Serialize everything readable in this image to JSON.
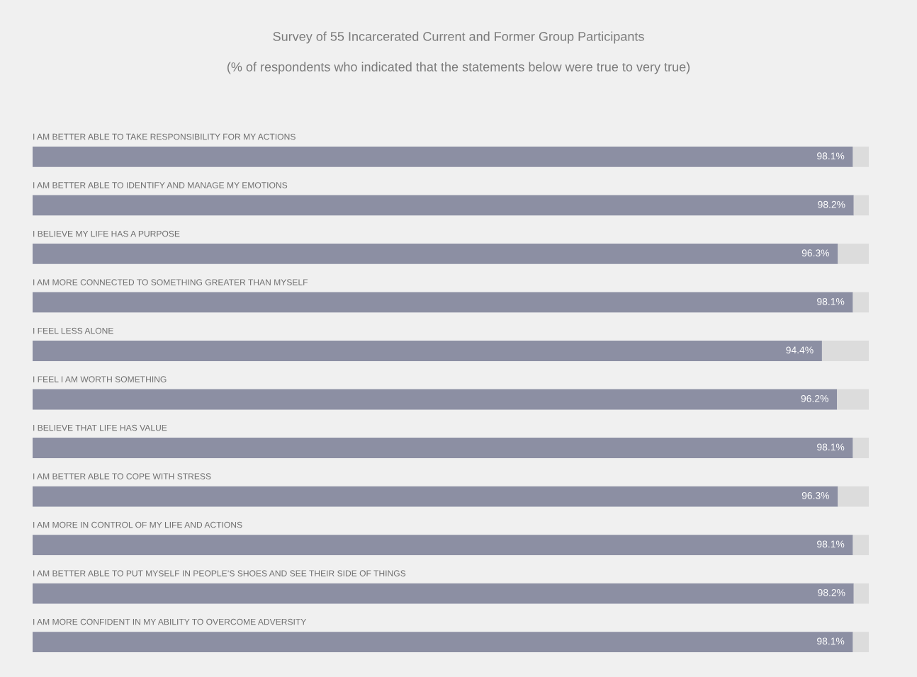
{
  "chart_data": {
    "type": "bar",
    "orientation": "horizontal",
    "stacked": true,
    "title": "Survey of 55 Incarcerated Current and Former Group Participants",
    "subtitle": "(% of respondents who indicated that the statements below were true to very true)",
    "categories": [
      "I AM BETTER ABLE TO TAKE RESPONSIBILITY FOR MY ACTIONS",
      "I AM BETTER ABLE TO IDENTIFY AND MANAGE MY EMOTIONS",
      "I BELIEVE MY LIFE HAS A PURPOSE",
      "I AM MORE CONNECTED TO SOMETHING GREATER THAN MYSELF",
      "I FEEL LESS ALONE",
      "I FEEL I AM WORTH SOMETHING",
      "I BELIEVE THAT LIFE HAS VALUE",
      "I AM BETTER ABLE TO COPE WITH STRESS",
      "I AM MORE IN CONTROL OF MY LIFE AND ACTIONS",
      "I AM BETTER ABLE TO PUT MYSELF IN PEOPLE’S SHOES AND SEE THEIR SIDE OF THINGS",
      "I AM MORE CONFIDENT IN MY ABILITY TO OVERCOME ADVERSITY"
    ],
    "series": [
      {
        "color": "#8c8fa3",
        "values": [
          98.1,
          98.2,
          96.3,
          98.1,
          94.4,
          96.2,
          98.1,
          96.3,
          98.1,
          98.2,
          98.1
        ],
        "value_labels": [
          "98.1%",
          "98.2%",
          "96.3%",
          "98.1%",
          "94.4%",
          "96.2%",
          "98.1%",
          "96.3%",
          "98.1%",
          "98.2%",
          "98.1%"
        ]
      },
      {
        "color": "#dcdcdc",
        "values": [
          1.9,
          1.8,
          3.7,
          1.9,
          5.6,
          3.8,
          1.9,
          3.7,
          1.9,
          1.8,
          1.9
        ]
      }
    ],
    "xlim": [
      0,
      100
    ],
    "legend": false,
    "tick_labels": false
  }
}
